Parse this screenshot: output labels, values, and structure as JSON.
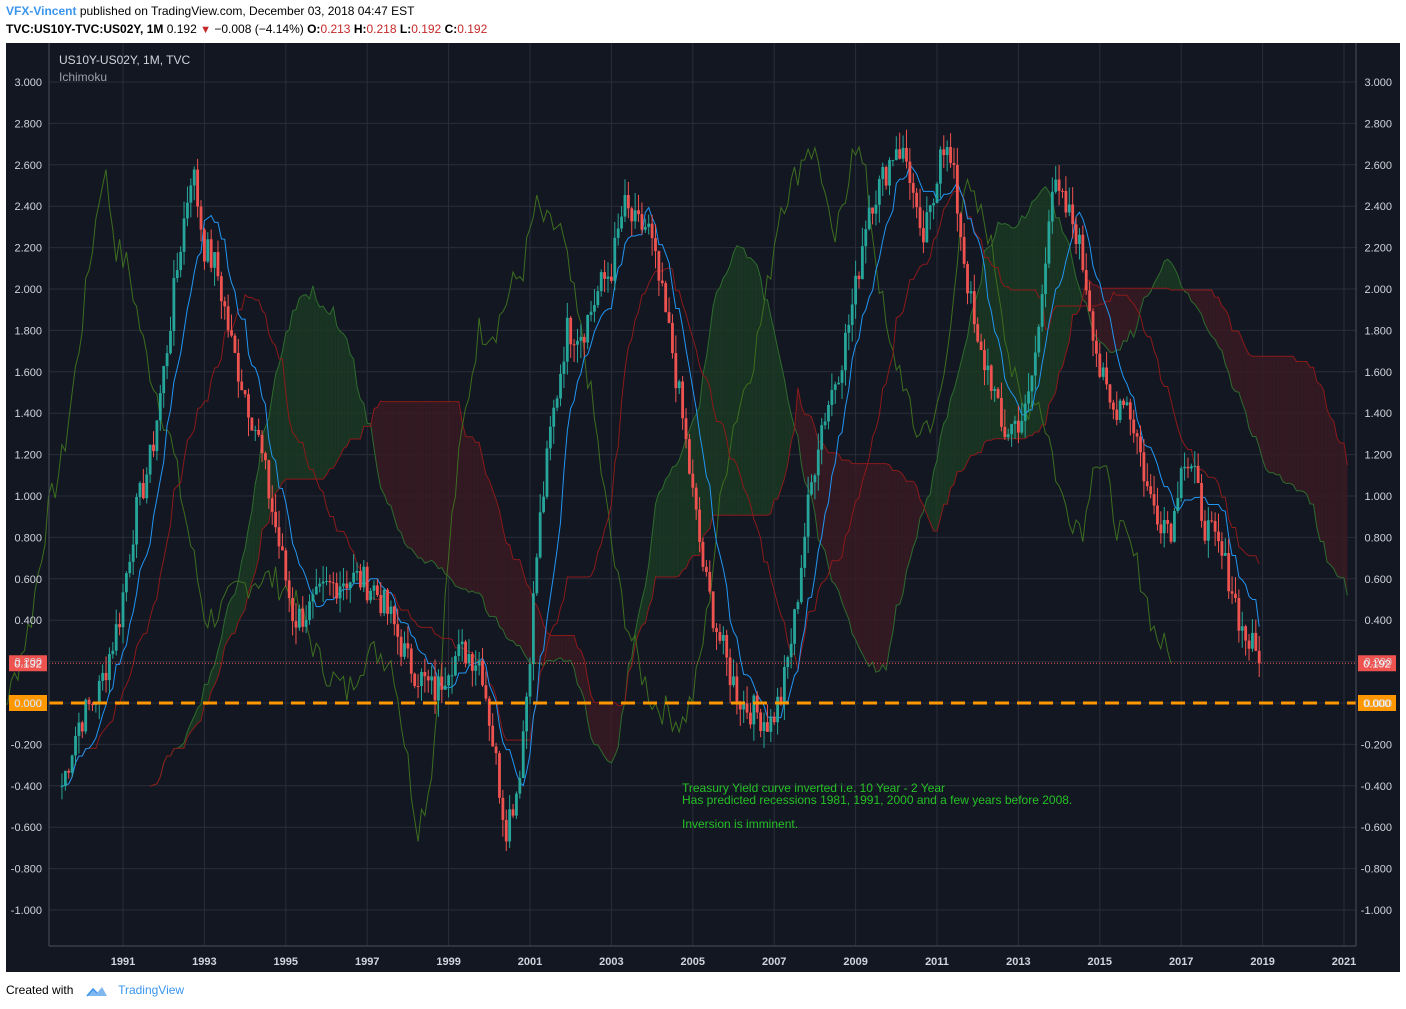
{
  "header": {
    "author": "VFX-Vincent",
    "published_text": "published on TradingView.com, December 03, 2018 04:47 EST",
    "symbol": "TVC:US10Y-TVC:US02Y, 1M",
    "last": "0.192",
    "change": "−0.008 (−4.14%)",
    "open_label": "O:",
    "open": "0.213",
    "high_label": "H:",
    "high": "0.218",
    "low_label": "L:",
    "low": "0.192",
    "close_label": "C:",
    "close": "0.192",
    "down_icon": "triangle-down-icon"
  },
  "legend": {
    "title": "US10Y-US02Y, 1M, TVC",
    "indicator": "Ichimoku"
  },
  "annotation": {
    "line1": "Treasury Yield curve inverted i.e. 10 Year - 2 Year",
    "line2": "Has predicted recessions 1981, 1991, 2000 and a few years before 2008.",
    "line3": "Inversion is imminent.",
    "color": "#26c026"
  },
  "price_labels": {
    "last": "0.192",
    "zero": "0.000"
  },
  "footer": {
    "created_with": "Created with",
    "brand": "TradingView",
    "logo_icon": "tradingview-cloud-icon"
  },
  "colors": {
    "background": "#131722",
    "grid": "#2a2e39",
    "up": "#26a69a",
    "down": "#ef5350",
    "conversion": "#2196f3",
    "base": "#8b1a1a",
    "lagging": "#3d6e1f",
    "bull_cloud": "#1b3a22",
    "bear_cloud": "#3a1a22",
    "zero_line": "#ff9800",
    "axis_text": "#d1d4dc"
  },
  "chart_data": {
    "type": "candlestick",
    "title": "US10Y-US02Y, 1M, TVC",
    "indicator": "Ichimoku",
    "ylim": [
      -1.2,
      3.2
    ],
    "xlim": [
      1989.4,
      2021.3
    ],
    "y_ticks": [
      "3.000",
      "2.800",
      "2.600",
      "2.400",
      "2.200",
      "2.000",
      "1.800",
      "1.600",
      "1.400",
      "1.200",
      "1.000",
      "0.800",
      "0.600",
      "0.400",
      "0.200",
      "0.000",
      "-0.200",
      "-0.400",
      "-0.600",
      "-0.800",
      "-1.000"
    ],
    "x_ticks": [
      "1991",
      "1993",
      "1995",
      "1997",
      "1999",
      "2001",
      "2003",
      "2005",
      "2007",
      "2009",
      "2011",
      "2013",
      "2015",
      "2017",
      "2019",
      "2021"
    ],
    "price_path": [
      [
        1989.5,
        -0.4
      ],
      [
        1989.9,
        -0.1
      ],
      [
        1990.4,
        0.05
      ],
      [
        1990.9,
        0.4
      ],
      [
        1991.3,
        0.9
      ],
      [
        1991.7,
        1.2
      ],
      [
        1992.0,
        1.6
      ],
      [
        1992.4,
        2.2
      ],
      [
        1992.7,
        2.6
      ],
      [
        1993.0,
        2.2
      ],
      [
        1993.3,
        2.1
      ],
      [
        1993.7,
        1.7
      ],
      [
        1994.0,
        1.5
      ],
      [
        1994.3,
        1.3
      ],
      [
        1994.6,
        1.0
      ],
      [
        1994.9,
        0.7
      ],
      [
        1995.2,
        0.4
      ],
      [
        1995.6,
        0.45
      ],
      [
        1996.0,
        0.55
      ],
      [
        1996.4,
        0.6
      ],
      [
        1996.8,
        0.6
      ],
      [
        1997.2,
        0.55
      ],
      [
        1997.6,
        0.4
      ],
      [
        1998.0,
        0.2
      ],
      [
        1998.4,
        0.1
      ],
      [
        1998.7,
        0.05
      ],
      [
        1999.0,
        0.2
      ],
      [
        1999.4,
        0.25
      ],
      [
        1999.8,
        0.2
      ],
      [
        2000.1,
        -0.2
      ],
      [
        2000.4,
        -0.6
      ],
      [
        2000.7,
        -0.4
      ],
      [
        2000.9,
        0.0
      ],
      [
        2001.2,
        0.8
      ],
      [
        2001.5,
        1.3
      ],
      [
        2001.9,
        1.8
      ],
      [
        2002.3,
        1.8
      ],
      [
        2002.7,
        2.0
      ],
      [
        2003.0,
        2.1
      ],
      [
        2003.3,
        2.4
      ],
      [
        2003.6,
        2.3
      ],
      [
        2003.9,
        2.3
      ],
      [
        2004.2,
        2.0
      ],
      [
        2004.5,
        1.7
      ],
      [
        2004.8,
        1.3
      ],
      [
        2005.0,
        1.0
      ],
      [
        2005.3,
        0.6
      ],
      [
        2005.6,
        0.35
      ],
      [
        2005.9,
        0.15
      ],
      [
        2006.2,
        0.0
      ],
      [
        2006.6,
        -0.05
      ],
      [
        2006.9,
        -0.1
      ],
      [
        2007.2,
        0.05
      ],
      [
        2007.5,
        0.4
      ],
      [
        2007.8,
        0.9
      ],
      [
        2008.1,
        1.3
      ],
      [
        2008.4,
        1.5
      ],
      [
        2008.7,
        1.7
      ],
      [
        2009.0,
        2.0
      ],
      [
        2009.3,
        2.4
      ],
      [
        2009.6,
        2.5
      ],
      [
        2010.0,
        2.7
      ],
      [
        2010.3,
        2.6
      ],
      [
        2010.6,
        2.2
      ],
      [
        2010.9,
        2.4
      ],
      [
        2011.1,
        2.75
      ],
      [
        2011.4,
        2.55
      ],
      [
        2011.7,
        2.1
      ],
      [
        2012.0,
        1.7
      ],
      [
        2012.3,
        1.6
      ],
      [
        2012.6,
        1.3
      ],
      [
        2012.9,
        1.35
      ],
      [
        2013.2,
        1.4
      ],
      [
        2013.5,
        1.8
      ],
      [
        2013.8,
        2.5
      ],
      [
        2014.1,
        2.4
      ],
      [
        2014.4,
        2.3
      ],
      [
        2014.7,
        2.0
      ],
      [
        2015.0,
        1.6
      ],
      [
        2015.3,
        1.4
      ],
      [
        2015.6,
        1.5
      ],
      [
        2015.9,
        1.3
      ],
      [
        2016.2,
        1.0
      ],
      [
        2016.5,
        0.9
      ],
      [
        2016.8,
        0.85
      ],
      [
        2017.0,
        1.2
      ],
      [
        2017.3,
        1.1
      ],
      [
        2017.6,
        0.85
      ],
      [
        2017.9,
        0.75
      ],
      [
        2018.2,
        0.6
      ],
      [
        2018.5,
        0.35
      ],
      [
        2018.8,
        0.25
      ],
      [
        2018.95,
        0.19
      ]
    ],
    "last_price": 0.192,
    "zero_line": 0.0
  }
}
